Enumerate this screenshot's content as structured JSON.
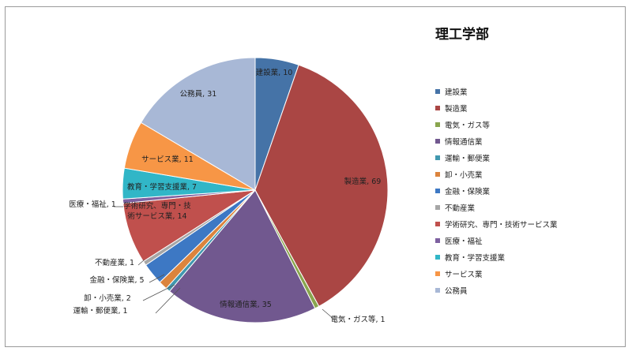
{
  "chart_data": {
    "type": "pie",
    "title": "理工学部",
    "categories": [
      "建設業",
      "製造業",
      "電気・ガス等",
      "情報通信業",
      "運輸・郵便業",
      "卸・小売業",
      "金融・保険業",
      "不動産業",
      "学術研究、専門・技術サービス業",
      "医療・福祉",
      "教育・学習支援業",
      "サービス業",
      "公務員"
    ],
    "values": [
      10,
      69,
      1,
      35,
      1,
      2,
      5,
      1,
      14,
      1,
      7,
      11,
      31
    ],
    "colors": [
      "#4573a7",
      "#aa4644",
      "#89a54e",
      "#71588f",
      "#4198af",
      "#db843d",
      "#3d78c4",
      "#a6a6a6",
      "#c0504d",
      "#7d60a0",
      "#31b6c7",
      "#f79646",
      "#a8b8d6"
    ],
    "data_labels": [
      "建設業, 10",
      "製造業, 69",
      "電気・ガス等, 1",
      "情報通信業, 35",
      "運輸・郵便業, 1",
      "卸・小売業, 2",
      "金融・保険業, 5",
      "不動産業, 1",
      "学術研究、専門・技\n術サービス業, 14",
      "医療・福祉, 1",
      "教育・学習支援業, 7",
      "サービス業, 11",
      "公務員, 31"
    ],
    "legend_entries": [
      "建設業",
      "製造業",
      "電気・ガス等",
      "情報通信業",
      "運輸・郵便業",
      "卸・小売業",
      "金融・保険業",
      "不動産業",
      "学術研究、専門・技術サービス業",
      "医療・福祉",
      "教育・学習支援業",
      "サービス業",
      "公務員"
    ],
    "legend_position": "right"
  }
}
